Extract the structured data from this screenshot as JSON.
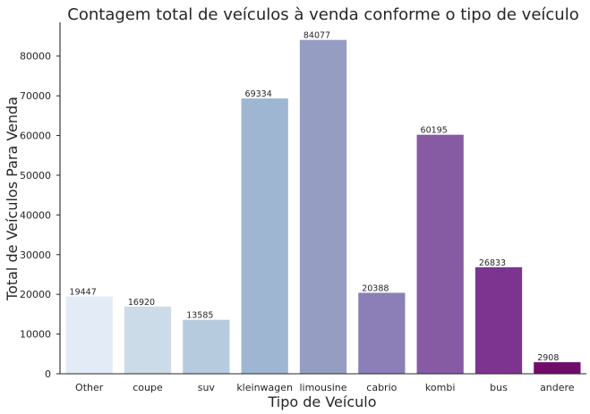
{
  "chart_data": {
    "type": "bar",
    "title": "Contagem total de veículos à venda conforme o tipo de veículo",
    "xlabel": "Tipo de Veículo",
    "ylabel": "Total de Veículos Para Venda",
    "categories": [
      "Other",
      "coupe",
      "suv",
      "kleinwagen",
      "limousine",
      "cabrio",
      "kombi",
      "bus",
      "andere"
    ],
    "values": [
      19447,
      16920,
      13585,
      69334,
      84077,
      20388,
      60195,
      26833,
      2908
    ],
    "data_labels": [
      "19447",
      "16920",
      "13585",
      "69334",
      "84077",
      "20388",
      "60195",
      "26833",
      "2908"
    ],
    "colors": [
      "#e3ecf6",
      "#ccdbe8",
      "#b7cbde",
      "#9fb6d3",
      "#959dc2",
      "#8c7fb8",
      "#875ba3",
      "#7d3490",
      "#700d6b"
    ],
    "ylim": [
      0,
      88500
    ],
    "yticks": [
      0,
      10000,
      20000,
      30000,
      40000,
      50000,
      60000,
      70000,
      80000
    ],
    "ytick_labels": [
      "0",
      "10000",
      "20000",
      "30000",
      "40000",
      "50000",
      "60000",
      "70000",
      "80000"
    ],
    "grid": false,
    "legend": "none"
  }
}
